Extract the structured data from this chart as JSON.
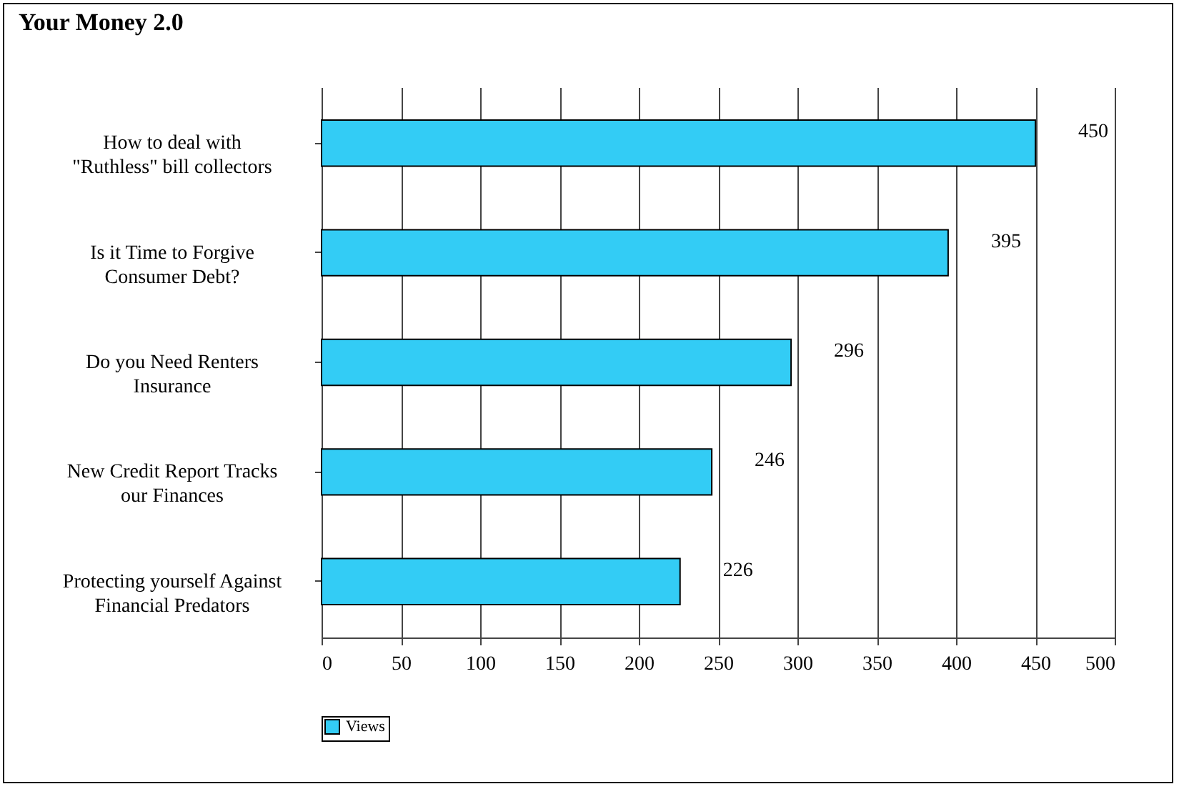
{
  "chart_data": {
    "type": "bar",
    "title": "Your Money 2.0",
    "orientation": "horizontal",
    "categories": [
      "How to deal with \"Ruthless\" bill collectors",
      "Is it Time to Forgive Consumer Debt?",
      "Do you Need Renters Insurance",
      "New Credit Report Tracks our Finances",
      "Protecting yourself Against Financial Predators"
    ],
    "series": [
      {
        "name": "Views",
        "color": "#33ccf5",
        "values": [
          450,
          395,
          296,
          246,
          226
        ]
      }
    ],
    "xlim": [
      0,
      500
    ],
    "xticks": [
      0,
      50,
      100,
      150,
      200,
      250,
      300,
      350,
      400,
      450,
      500
    ],
    "grid": "x",
    "legend": "bottom",
    "data_labels": true
  }
}
